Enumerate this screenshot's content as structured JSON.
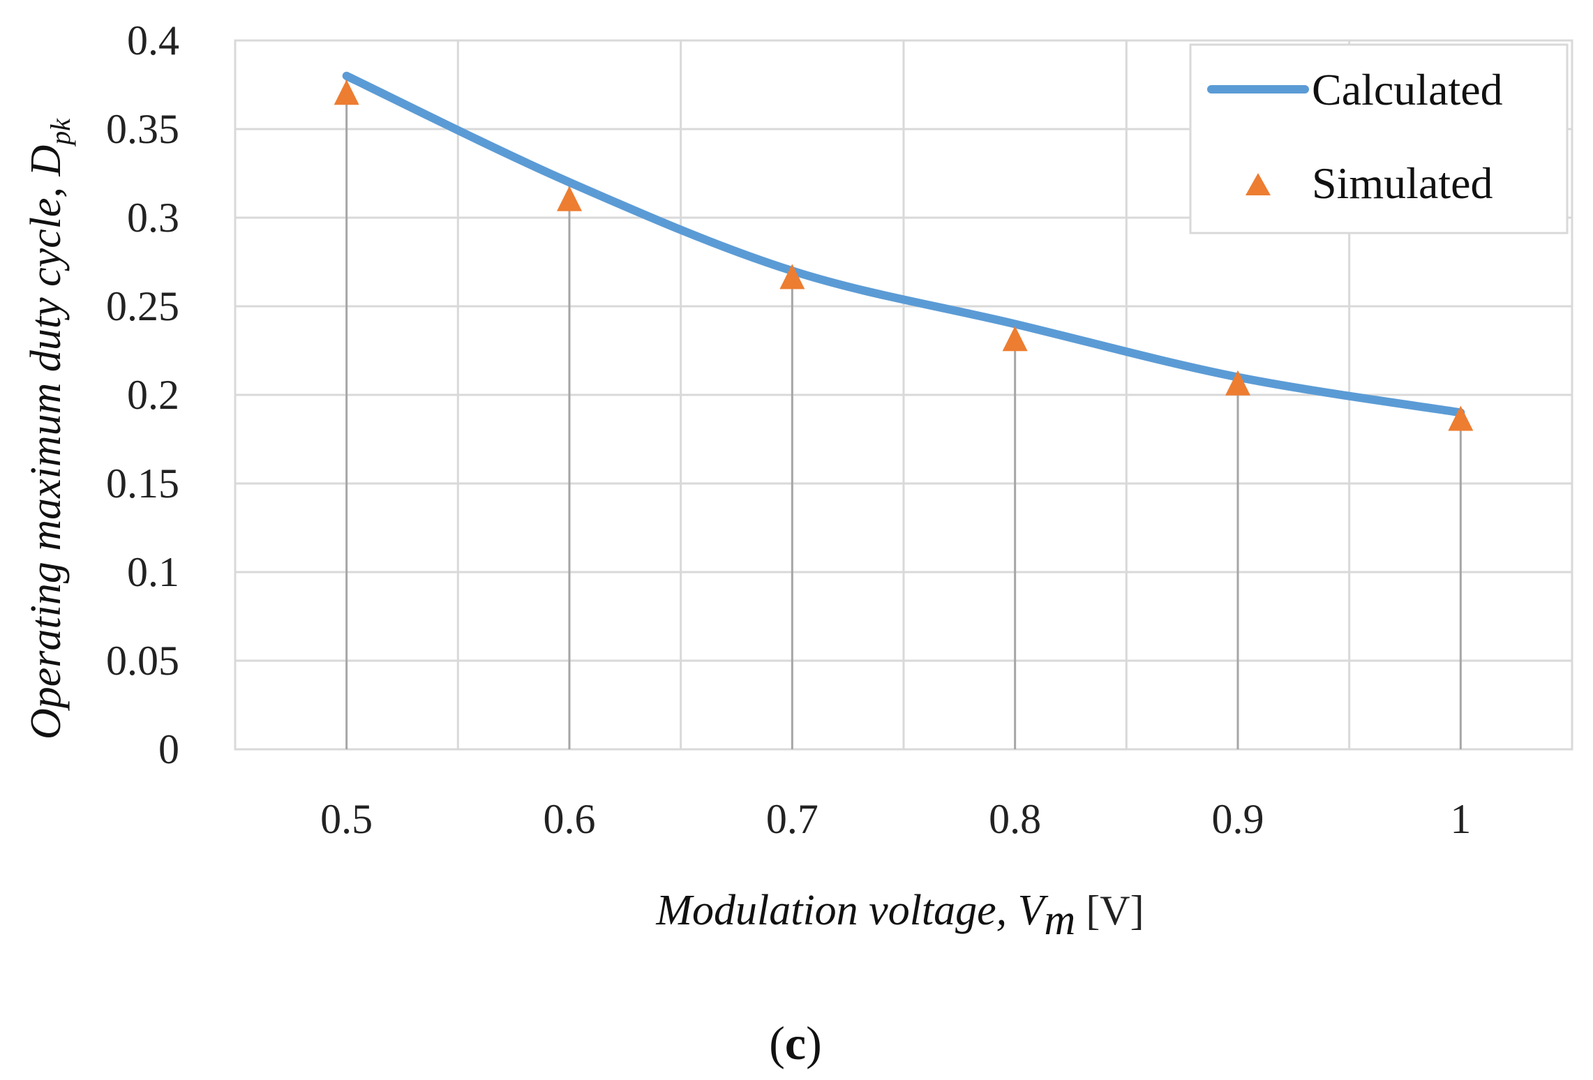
{
  "chart_data": {
    "type": "line",
    "x": [
      0.5,
      0.6,
      0.7,
      0.8,
      0.9,
      1
    ],
    "x_tick_labels": [
      "0.5",
      "0.6",
      "0.7",
      "0.8",
      "0.9",
      "1"
    ],
    "y_tick_labels": [
      "0",
      "0.05",
      "0.1",
      "0.15",
      "0.2",
      "0.25",
      "0.3",
      "0.35",
      "0.4"
    ],
    "ylim": [
      0,
      0.4
    ],
    "xlim": [
      0.45,
      1.05
    ],
    "grid": true,
    "legend_position": "top-right",
    "series": [
      {
        "name": "Calculated",
        "kind": "line",
        "color": "#5b9bd5",
        "values": [
          0.38,
          0.32,
          0.27,
          0.24,
          0.21,
          0.19
        ]
      },
      {
        "name": "Simulated",
        "kind": "marker-triangle",
        "color": "#ed7d31",
        "values": [
          0.37,
          0.31,
          0.266,
          0.231,
          0.206,
          0.186
        ]
      }
    ],
    "xlabel": {
      "main": "Modulation voltage, V",
      "sub": "m",
      "unit": " [V]"
    },
    "ylabel": {
      "main": "Operating maximum duty cycle, D",
      "sub": "pk"
    },
    "panel_label": {
      "open": "(",
      "letter": "c",
      "close": ")"
    }
  }
}
